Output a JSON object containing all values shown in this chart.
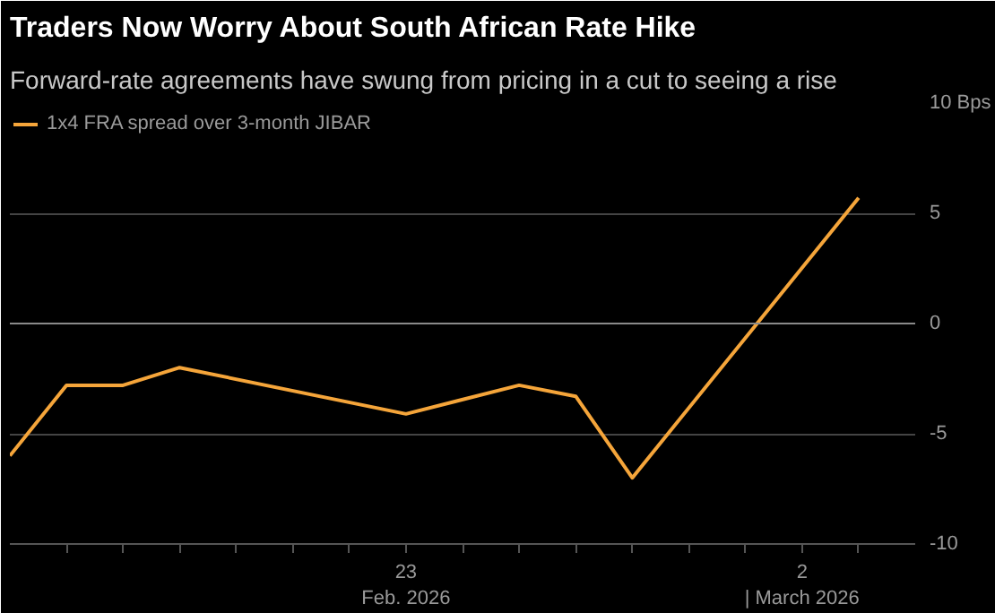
{
  "chart_data": {
    "type": "line",
    "title": "Traders Now Worry About South African Rate Hike",
    "subtitle": "Forward-rate agreements have swung from pricing in a cut to seeing a rise",
    "x": [
      "2026-02-16",
      "2026-02-17",
      "2026-02-18",
      "2026-02-19",
      "2026-02-23",
      "2026-02-25",
      "2026-02-26",
      "2026-02-27",
      "2026-03-03"
    ],
    "series": [
      {
        "name": "1x4 FRA spread over 3-month JIBAR",
        "color": "#f5a53a",
        "values": [
          -6.0,
          -2.8,
          -2.8,
          -2.0,
          -4.1,
          -2.8,
          -3.3,
          -7.0,
          5.7
        ]
      }
    ],
    "xlim": [
      "2026-02-16",
      "2026-03-04"
    ],
    "xticks": [
      {
        "value": "2026-02-17",
        "label": null
      },
      {
        "value": "2026-02-18",
        "label": null
      },
      {
        "value": "2026-02-19",
        "label": null
      },
      {
        "value": "2026-02-20",
        "label": null
      },
      {
        "value": "2026-02-21",
        "label": null
      },
      {
        "value": "2026-02-22",
        "label": null
      },
      {
        "value": "2026-02-23",
        "label": "23\nFeb. 2026"
      },
      {
        "value": "2026-02-24",
        "label": null
      },
      {
        "value": "2026-02-25",
        "label": null
      },
      {
        "value": "2026-02-26",
        "label": null
      },
      {
        "value": "2026-02-27",
        "label": null
      },
      {
        "value": "2026-02-28",
        "label": null
      },
      {
        "value": "2026-03-01",
        "label": null
      },
      {
        "value": "2026-03-02",
        "label": "2\n| March 2026"
      },
      {
        "value": "2026-03-03",
        "label": null
      }
    ],
    "ylim": [
      -10,
      10
    ],
    "yticks": [
      -10,
      -5,
      0,
      5,
      {
        "value": 10,
        "label": "10 Bps"
      }
    ],
    "grid": "y",
    "legend": "top left",
    "marker": "none",
    "line_style": "solid"
  }
}
